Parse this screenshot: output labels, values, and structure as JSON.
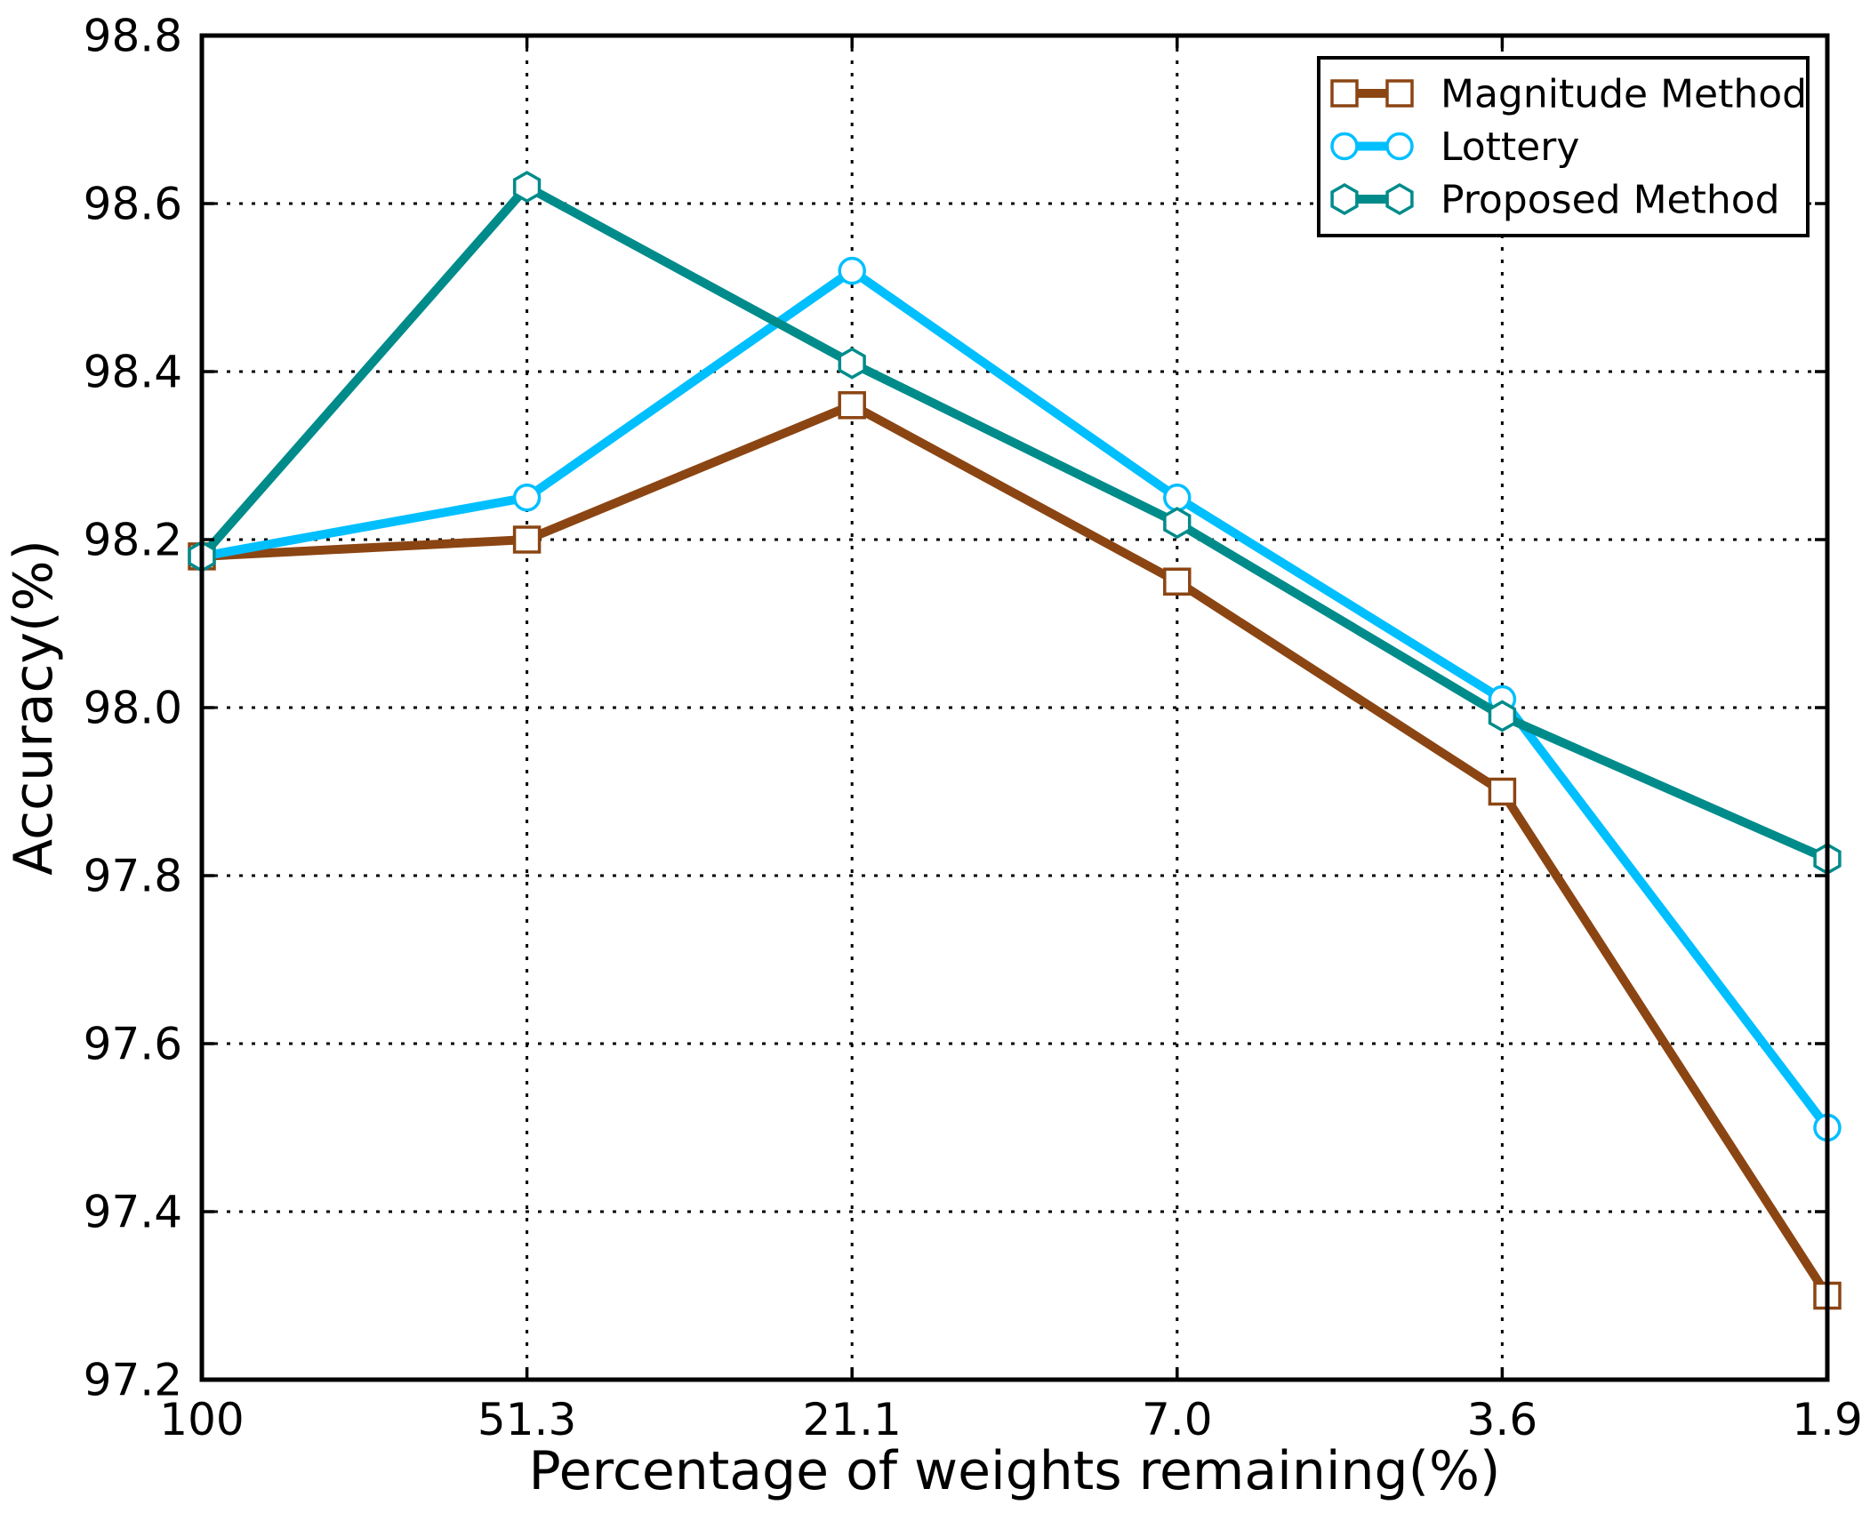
{
  "figure": {
    "background": "#ffffff"
  },
  "chart_data": {
    "type": "line",
    "title": "",
    "xlabel": "Percentage of weights remaining(%)",
    "ylabel": "Accuracy(%)",
    "categories": [
      "100",
      "51.3",
      "21.1",
      "7.0",
      "3.6",
      "1.9"
    ],
    "y_tick_values": [
      98.8,
      98.6,
      98.4,
      98.2,
      98.0,
      97.8,
      97.6,
      97.4,
      97.2
    ],
    "ylim": [
      97.2,
      98.8
    ],
    "grid": "dotted-black-both-axes",
    "legend_position": "upper-right",
    "axis_color": "#000000",
    "series": [
      {
        "name": "Magnitude Method",
        "color": "#8B4513",
        "marker": "square",
        "values": [
          98.18,
          98.2,
          98.36,
          98.15,
          97.9,
          97.3
        ]
      },
      {
        "name": "Lottery",
        "color": "#00BFFF",
        "marker": "circle",
        "values": [
          98.18,
          98.25,
          98.52,
          98.25,
          98.01,
          97.5
        ]
      },
      {
        "name": "Proposed Method",
        "color": "#008B8B",
        "marker": "hexagon",
        "values": [
          98.18,
          98.62,
          98.41,
          98.22,
          97.99,
          97.82
        ]
      }
    ]
  }
}
